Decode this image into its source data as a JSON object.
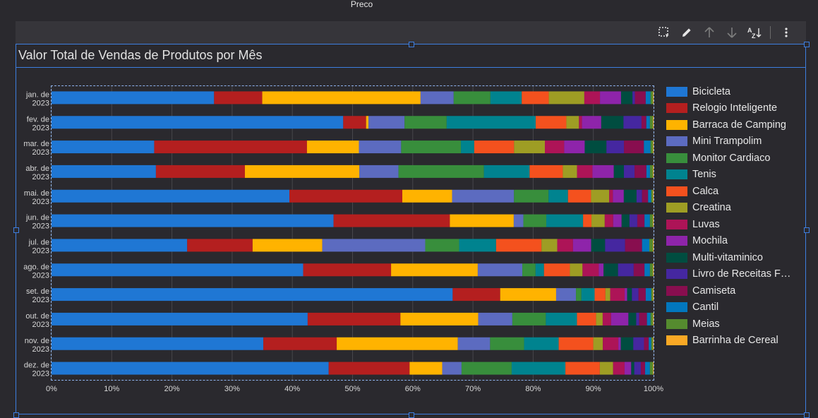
{
  "header": {
    "field_label": "Preco"
  },
  "toolbar": {
    "icons": [
      "select-region-icon",
      "edit-icon",
      "sort-ascending-icon",
      "sort-descending-icon",
      "sort-az-icon",
      "more-options-icon"
    ]
  },
  "legend": {
    "items": [
      {
        "label": "Bicicleta",
        "color": "#1f77d4"
      },
      {
        "label": "Relogio Inteligente",
        "color": "#b41f1f"
      },
      {
        "label": "Barraca de Camping",
        "color": "#ffb300"
      },
      {
        "label": "Mini Trampolim",
        "color": "#5c6bc0"
      },
      {
        "label": "Monitor Cardiaco",
        "color": "#388e3c"
      },
      {
        "label": "Tenis",
        "color": "#00838f"
      },
      {
        "label": "Calca",
        "color": "#f4511e"
      },
      {
        "label": "Creatina",
        "color": "#9e9d24"
      },
      {
        "label": "Luvas",
        "color": "#ad1457"
      },
      {
        "label": "Mochila",
        "color": "#8e24aa"
      },
      {
        "label": "Multi-vitaminico",
        "color": "#004d40"
      },
      {
        "label": "Livro de Receitas F…",
        "color": "#4527a0"
      },
      {
        "label": "Camiseta",
        "color": "#880e4f"
      },
      {
        "label": "Cantil",
        "color": "#0277bd"
      },
      {
        "label": "Meias",
        "color": "#558b2f"
      },
      {
        "label": "Barrinha de Cereal",
        "color": "#f9a825"
      }
    ]
  },
  "chart_data": {
    "type": "bar",
    "orientation": "horizontal",
    "stacked": "percent",
    "title": "Valor Total de Vendas de Produtos por Mês",
    "categories": [
      [
        "jan. de",
        "2023"
      ],
      [
        "fev. de",
        "2023"
      ],
      [
        "mar. de",
        "2023"
      ],
      [
        "abr. de",
        "2023"
      ],
      [
        "mai. de",
        "2023"
      ],
      [
        "jun. de",
        "2023"
      ],
      [
        "jul. de",
        "2023"
      ],
      [
        "ago. de",
        "2023"
      ],
      [
        "set. de",
        "2023"
      ],
      [
        "out. de",
        "2023"
      ],
      [
        "nov. de",
        "2023"
      ],
      [
        "dez. de",
        "2023"
      ]
    ],
    "x_ticks": [
      "0%",
      "10%",
      "20%",
      "30%",
      "40%",
      "50%",
      "60%",
      "70%",
      "80%",
      "90%",
      "100%"
    ],
    "xlim": [
      0,
      100
    ],
    "grid": true,
    "legend_position": "right",
    "series": [
      {
        "name": "Bicicleta",
        "values": [
          27,
          48.5,
          17,
          17.6,
          39.2,
          46.8,
          22.4,
          41.8,
          66.7,
          42.8,
          35.5,
          45.9
        ]
      },
      {
        "name": "Relogio Inteligente",
        "values": [
          8,
          3.8,
          25.3,
          15.0,
          18.6,
          19.3,
          10.8,
          14.6,
          7.9,
          15.5,
          12.3,
          13.4
        ]
      },
      {
        "name": "Barraca de Camping",
        "values": [
          26.3,
          0.4,
          8.6,
          19.3,
          8.2,
          10.6,
          11.5,
          14.4,
          9.3,
          13.0,
          20.3,
          5.4
        ]
      },
      {
        "name": "Mini Trampolim",
        "values": [
          5.5,
          6.0,
          7.0,
          6.6,
          10.2,
          1.6,
          17.0,
          7.4,
          3.3,
          5.7,
          5.4,
          3.2
        ]
      },
      {
        "name": "Monitor Cardiaco",
        "values": [
          6.1,
          7.0,
          9.9,
          14.4,
          5.7,
          3.8,
          5.6,
          2.2,
          0.9,
          5.6,
          5.7,
          8.3
        ]
      },
      {
        "name": "Tenis",
        "values": [
          5.2,
          14.8,
          2.2,
          7.7,
          3.2,
          6.1,
          6.1,
          1.4,
          2.2,
          5.2,
          5.8,
          8.9
        ]
      },
      {
        "name": "Calca",
        "values": [
          4.5,
          5.1,
          6.6,
          5.6,
          3.8,
          1.4,
          7.5,
          4.3,
          1.8,
          3.2,
          5.8,
          5.7
        ]
      },
      {
        "name": "Creatina",
        "values": [
          5.9,
          2.1,
          5.1,
          2.4,
          3.0,
          2.2,
          2.6,
          2.1,
          0.8,
          1.1,
          1.6,
          2.2
        ]
      },
      {
        "name": "Luvas",
        "values": [
          2.6,
          0.5,
          3.2,
          2.6,
          0.6,
          1.4,
          2.6,
          2.7,
          2.4,
          1.4,
          2.6,
          1.9
        ]
      },
      {
        "name": "Mochila",
        "values": [
          3.5,
          3.2,
          3.4,
          3.6,
          1.8,
          1.4,
          3.0,
          0.8,
          0.4,
          2.9,
          0.4,
          1.1
        ]
      },
      {
        "name": "Multi-vitaminico",
        "values": [
          1.9,
          3.7,
          3.6,
          1.7,
          2.1,
          1.3,
          2.3,
          2.4,
          0.8,
          1.3,
          2.1,
          0.5
        ]
      },
      {
        "name": "Livro de Receitas F…",
        "values": [
          0.4,
          3.0,
          2.9,
          1.8,
          0.9,
          1.3,
          3.3,
          2.6,
          1.1,
          0.5,
          1.8,
          1.1
        ]
      },
      {
        "name": "Camiseta",
        "values": [
          1.8,
          0.8,
          3.3,
          2.0,
          1.0,
          1.2,
          2.8,
          1.8,
          1.2,
          1.3,
          0.8,
          0.7
        ]
      },
      {
        "name": "Cantil",
        "values": [
          0.8,
          0.6,
          1.1,
          0.6,
          0.5,
          0.9,
          1.2,
          0.9,
          0.9,
          0.6,
          0.4,
          0.8
        ]
      },
      {
        "name": "Meias",
        "values": [
          0.4,
          0.5,
          0.4,
          0.5,
          0.3,
          0.5,
          0.6,
          0.5,
          0.3,
          0.4,
          0.3,
          0.5
        ]
      },
      {
        "name": "Barrinha de Cereal",
        "values": [
          0.1,
          0.1,
          0.1,
          0.1,
          0.1,
          0.1,
          0.1,
          0.1,
          0.1,
          0.1,
          0.1,
          0.1
        ]
      }
    ]
  }
}
